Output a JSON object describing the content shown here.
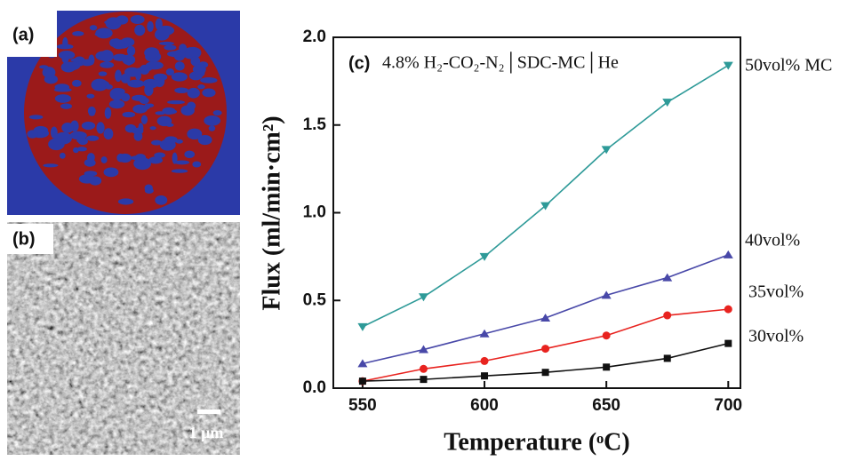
{
  "panels": {
    "a_label": "(a)",
    "b_label": "(b)",
    "scale_bar": "1 µm"
  },
  "chart_data": {
    "type": "line",
    "panel_label": "(c)",
    "annotation": "4.8% H₂-CO₂-N₂│SDC-MC│He",
    "x_label": "Temperature (ᵒC)",
    "y_label": "Flux (ml/min·cm²)",
    "x": [
      550,
      575,
      600,
      625,
      650,
      675,
      700
    ],
    "xlim": [
      538,
      705
    ],
    "xticks": [
      550,
      600,
      650,
      700
    ],
    "ylim": [
      0,
      2.0
    ],
    "yticks": [
      {
        "value": 0,
        "label": "0.0"
      },
      0.5,
      {
        "value": 1.0,
        "label": "1.0"
      },
      1.5,
      {
        "value": 2.0,
        "label": "2.0"
      }
    ],
    "series": [
      {
        "name": "50vol% MC",
        "color": "#2e9a98",
        "marker": "triangle-down",
        "values": [
          0.35,
          0.52,
          0.75,
          1.04,
          1.36,
          1.63,
          1.84
        ]
      },
      {
        "name": "40vol%",
        "color": "#4848a8",
        "marker": "triangle-up",
        "values": [
          0.14,
          0.22,
          0.31,
          0.4,
          0.53,
          0.63,
          0.76
        ]
      },
      {
        "name": "35vol%",
        "color": "#e8231f",
        "marker": "circle",
        "values": [
          0.04,
          0.11,
          0.155,
          0.225,
          0.3,
          0.415,
          0.45
        ]
      },
      {
        "name": "30vol%",
        "color": "#111111",
        "marker": "square",
        "values": [
          0.04,
          0.05,
          0.07,
          0.09,
          0.12,
          0.17,
          0.255
        ]
      }
    ]
  }
}
